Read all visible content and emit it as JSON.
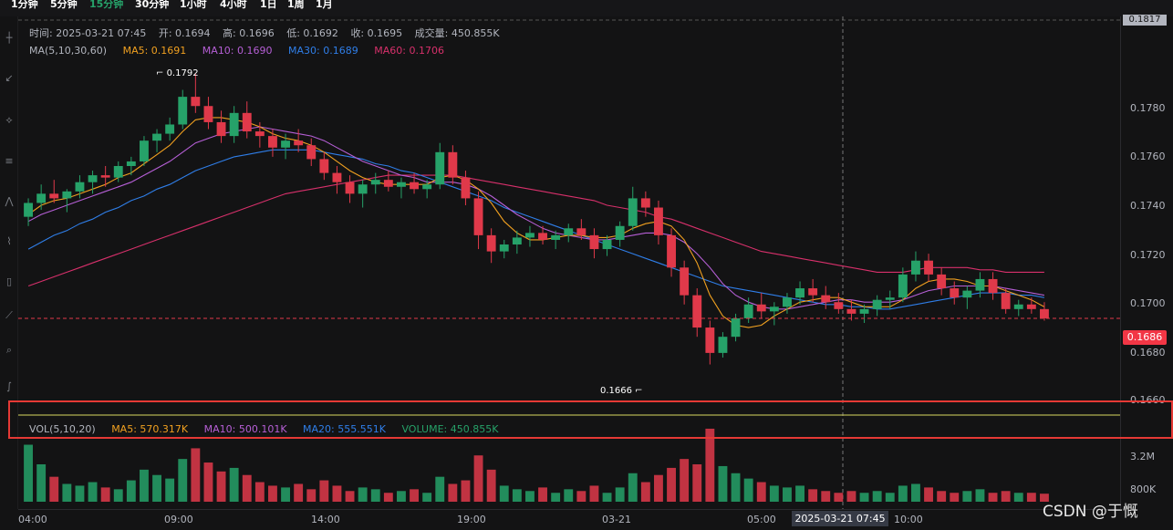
{
  "timeframes": [
    "1分钟",
    "5分钟",
    "15分钟",
    "30分钟",
    "1小时",
    "4小时",
    "1日",
    "1周",
    "1月"
  ],
  "active_timeframe": "15分钟",
  "ohlc_legend": {
    "time": "时间: 2025-03-21 07:45",
    "open": "开: 0.1694",
    "high": "高: 0.1696",
    "low": "低: 0.1692",
    "close": "收: 0.1695",
    "volume": "成交量: 450.855K"
  },
  "ma_legend": {
    "title": "MA(5,10,30,60)",
    "ma5": "MA5: 0.1691",
    "ma10": "MA10: 0.1690",
    "ma30": "MA30: 0.1689",
    "ma60": "MA60: 0.1706"
  },
  "vol_legend": {
    "title": "VOL(5,10,20)",
    "ma5": "MA5: 570.317K",
    "ma10": "MA10: 500.101K",
    "ma20": "MA20: 555.551K",
    "volume": "VOLUME: 450.855K"
  },
  "colors": {
    "up": "#26a269",
    "down": "#e0394a",
    "ma5": "#f0a020",
    "ma10": "#b65fd6",
    "ma30": "#2f7ee8",
    "ma60": "#d7306b",
    "background": "#131314"
  },
  "price_axis": {
    "labels": [
      "0.1780",
      "0.1760",
      "0.1740",
      "0.1720",
      "0.1700",
      "0.1680",
      "0.1660"
    ],
    "last_price": "0.1686",
    "top_price": "0.1817"
  },
  "volume_axis": {
    "labels": [
      "3.2M",
      "800K"
    ]
  },
  "time_axis": {
    "labels": [
      "04:00",
      "09:00",
      "14:00",
      "19:00",
      "03-21",
      "05:00",
      "10:00"
    ],
    "crosshair_time": "2025-03-21 07:45"
  },
  "annotations": {
    "high": "0.1792",
    "low": "0.1666"
  },
  "watermark": "CSDN @于慨",
  "left_toolbar_icons": [
    "crosshair-icon",
    "trend-line-icon",
    "horizontal-line-icon",
    "fib-icon",
    "pattern-icon",
    "brush-icon",
    "text-icon",
    "measure-icon",
    "zoom-icon",
    "eraser-icon"
  ],
  "chart_data": {
    "type": "candlestick",
    "interval": "15分钟",
    "ylim": [
      0.165,
      0.182
    ],
    "candles_ohlc": [
      [
        0.173,
        0.1738,
        0.1726,
        0.1736
      ],
      [
        0.1736,
        0.1744,
        0.1733,
        0.174
      ],
      [
        0.174,
        0.1746,
        0.1736,
        0.1738
      ],
      [
        0.1738,
        0.1742,
        0.1732,
        0.1741
      ],
      [
        0.1741,
        0.1748,
        0.1738,
        0.1745
      ],
      [
        0.1745,
        0.175,
        0.174,
        0.1748
      ],
      [
        0.1748,
        0.1752,
        0.1743,
        0.1747
      ],
      [
        0.1747,
        0.1754,
        0.1745,
        0.1752
      ],
      [
        0.1752,
        0.1756,
        0.1748,
        0.1754
      ],
      [
        0.1754,
        0.1765,
        0.1752,
        0.1763
      ],
      [
        0.1763,
        0.1768,
        0.1758,
        0.1766
      ],
      [
        0.1766,
        0.1773,
        0.1763,
        0.177
      ],
      [
        0.177,
        0.1785,
        0.1768,
        0.1782
      ],
      [
        0.1782,
        0.1792,
        0.1775,
        0.1778
      ],
      [
        0.1778,
        0.1782,
        0.1768,
        0.1771
      ],
      [
        0.1771,
        0.1776,
        0.1762,
        0.1765
      ],
      [
        0.1765,
        0.1778,
        0.1762,
        0.1775
      ],
      [
        0.1775,
        0.178,
        0.1764,
        0.1767
      ],
      [
        0.1767,
        0.1771,
        0.176,
        0.1765
      ],
      [
        0.1765,
        0.1768,
        0.1756,
        0.176
      ],
      [
        0.176,
        0.1766,
        0.1755,
        0.1763
      ],
      [
        0.1763,
        0.1768,
        0.1758,
        0.1761
      ],
      [
        0.1761,
        0.1764,
        0.1752,
        0.1755
      ],
      [
        0.1755,
        0.1758,
        0.1746,
        0.1749
      ],
      [
        0.1749,
        0.1752,
        0.174,
        0.1745
      ],
      [
        0.1745,
        0.1748,
        0.1736,
        0.174
      ],
      [
        0.174,
        0.1746,
        0.1734,
        0.1744
      ],
      [
        0.1744,
        0.1749,
        0.174,
        0.1746
      ],
      [
        0.1746,
        0.175,
        0.1741,
        0.1743
      ],
      [
        0.1743,
        0.1747,
        0.1738,
        0.1745
      ],
      [
        0.1745,
        0.1749,
        0.174,
        0.1742
      ],
      [
        0.1742,
        0.1746,
        0.1738,
        0.1744
      ],
      [
        0.1744,
        0.1762,
        0.1742,
        0.1758
      ],
      [
        0.1758,
        0.1761,
        0.1744,
        0.1747
      ],
      [
        0.1747,
        0.175,
        0.1735,
        0.1738
      ],
      [
        0.1738,
        0.1741,
        0.1716,
        0.1722
      ],
      [
        0.1722,
        0.1725,
        0.171,
        0.1715
      ],
      [
        0.1715,
        0.172,
        0.1712,
        0.1718
      ],
      [
        0.1718,
        0.1724,
        0.1714,
        0.1721
      ],
      [
        0.1721,
        0.1726,
        0.1717,
        0.1723
      ],
      [
        0.1723,
        0.1726,
        0.1718,
        0.172
      ],
      [
        0.172,
        0.1724,
        0.1716,
        0.1722
      ],
      [
        0.1722,
        0.1727,
        0.1719,
        0.1725
      ],
      [
        0.1725,
        0.1729,
        0.172,
        0.1722
      ],
      [
        0.1722,
        0.1725,
        0.1712,
        0.1716
      ],
      [
        0.1716,
        0.1722,
        0.1713,
        0.172
      ],
      [
        0.172,
        0.1728,
        0.1717,
        0.1726
      ],
      [
        0.1726,
        0.1743,
        0.1724,
        0.1738
      ],
      [
        0.1738,
        0.1741,
        0.173,
        0.1734
      ],
      [
        0.1734,
        0.1737,
        0.1718,
        0.1722
      ],
      [
        0.1722,
        0.1725,
        0.1704,
        0.1708
      ],
      [
        0.1708,
        0.1711,
        0.1692,
        0.1696
      ],
      [
        0.1696,
        0.1699,
        0.1678,
        0.1682
      ],
      [
        0.1682,
        0.1685,
        0.1666,
        0.1671
      ],
      [
        0.1671,
        0.168,
        0.1669,
        0.1678
      ],
      [
        0.1678,
        0.1688,
        0.1676,
        0.1686
      ],
      [
        0.1686,
        0.1695,
        0.1684,
        0.1692
      ],
      [
        0.1692,
        0.1697,
        0.1686,
        0.1689
      ],
      [
        0.1689,
        0.1693,
        0.1683,
        0.1691
      ],
      [
        0.1691,
        0.1697,
        0.1688,
        0.1695
      ],
      [
        0.1695,
        0.1702,
        0.1692,
        0.1699
      ],
      [
        0.1699,
        0.1703,
        0.1693,
        0.1696
      ],
      [
        0.1696,
        0.17,
        0.169,
        0.1693
      ],
      [
        0.1693,
        0.1697,
        0.1688,
        0.169
      ],
      [
        0.169,
        0.1694,
        0.1685,
        0.1688
      ],
      [
        0.1688,
        0.1692,
        0.1684,
        0.169
      ],
      [
        0.169,
        0.1696,
        0.1687,
        0.1694
      ],
      [
        0.1694,
        0.1698,
        0.169,
        0.1695
      ],
      [
        0.1695,
        0.1708,
        0.1693,
        0.1705
      ],
      [
        0.1705,
        0.1715,
        0.1702,
        0.1711
      ],
      [
        0.1711,
        0.1714,
        0.1702,
        0.1705
      ],
      [
        0.1705,
        0.1708,
        0.1696,
        0.1699
      ],
      [
        0.1699,
        0.1702,
        0.1692,
        0.1695
      ],
      [
        0.1695,
        0.17,
        0.169,
        0.1698
      ],
      [
        0.1698,
        0.1706,
        0.1695,
        0.1703
      ],
      [
        0.1703,
        0.1706,
        0.1694,
        0.1697
      ],
      [
        0.1697,
        0.1699,
        0.1688,
        0.169
      ],
      [
        0.169,
        0.1694,
        0.1687,
        0.1692
      ],
      [
        0.1692,
        0.1695,
        0.1688,
        0.169
      ],
      [
        0.169,
        0.1693,
        0.1685,
        0.1686
      ]
    ],
    "ma5": [
      0.1731,
      0.1735,
      0.1737,
      0.1738,
      0.174,
      0.1742,
      0.1744,
      0.1747,
      0.1749,
      0.1753,
      0.1757,
      0.1761,
      0.1767,
      0.1772,
      0.1773,
      0.1773,
      0.1772,
      0.1771,
      0.1769,
      0.1766,
      0.1764,
      0.1763,
      0.1761,
      0.1758,
      0.1754,
      0.175,
      0.1747,
      0.1745,
      0.1744,
      0.1744,
      0.1744,
      0.1744,
      0.1747,
      0.1748,
      0.1746,
      0.1742,
      0.1736,
      0.1728,
      0.1723,
      0.172,
      0.172,
      0.1721,
      0.1722,
      0.1722,
      0.1721,
      0.1721,
      0.1722,
      0.1725,
      0.1727,
      0.1728,
      0.1726,
      0.172,
      0.171,
      0.1696,
      0.1687,
      0.1683,
      0.1682,
      0.1683,
      0.1687,
      0.169,
      0.1693,
      0.1694,
      0.1695,
      0.1695,
      0.1693,
      0.1691,
      0.1691,
      0.1691,
      0.1694,
      0.1699,
      0.1702,
      0.1703,
      0.1703,
      0.1702,
      0.17,
      0.17,
      0.1698,
      0.1696,
      0.1694,
      0.1691
    ],
    "ma10": [
      0.1728,
      0.1731,
      0.1733,
      0.1735,
      0.1737,
      0.1739,
      0.1741,
      0.1743,
      0.1745,
      0.1748,
      0.1751,
      0.1754,
      0.1758,
      0.1762,
      0.1764,
      0.1766,
      0.1767,
      0.1768,
      0.1769,
      0.1768,
      0.1767,
      0.1766,
      0.1765,
      0.1763,
      0.176,
      0.1757,
      0.1754,
      0.1752,
      0.175,
      0.1748,
      0.1747,
      0.1745,
      0.1745,
      0.1745,
      0.1744,
      0.1742,
      0.1739,
      0.1735,
      0.1731,
      0.1728,
      0.1725,
      0.1723,
      0.1722,
      0.1721,
      0.172,
      0.172,
      0.1721,
      0.1722,
      0.1723,
      0.1723,
      0.1722,
      0.1719,
      0.1714,
      0.1708,
      0.1701,
      0.1696,
      0.1693,
      0.1691,
      0.169,
      0.169,
      0.1691,
      0.1692,
      0.1693,
      0.1694,
      0.1694,
      0.1693,
      0.1693,
      0.1693,
      0.1694,
      0.1696,
      0.1698,
      0.1699,
      0.17,
      0.17,
      0.17,
      0.17,
      0.1699,
      0.1698,
      0.1697,
      0.1696
    ],
    "ma30": [
      0.1716,
      0.1719,
      0.1722,
      0.1724,
      0.1727,
      0.1729,
      0.1732,
      0.1734,
      0.1737,
      0.1739,
      0.1742,
      0.1744,
      0.1747,
      0.175,
      0.1752,
      0.1754,
      0.1756,
      0.1757,
      0.1758,
      0.1759,
      0.1759,
      0.1759,
      0.1759,
      0.1758,
      0.1757,
      0.1756,
      0.1755,
      0.1753,
      0.1752,
      0.175,
      0.1749,
      0.1747,
      0.1745,
      0.1743,
      0.1741,
      0.1739,
      0.1737,
      0.1734,
      0.1732,
      0.173,
      0.1728,
      0.1726,
      0.1724,
      0.1722,
      0.172,
      0.1718,
      0.1716,
      0.1714,
      0.1712,
      0.171,
      0.1708,
      0.1706,
      0.1704,
      0.1702,
      0.17,
      0.1699,
      0.1698,
      0.1697,
      0.1696,
      0.1695,
      0.1694,
      0.1693,
      0.1692,
      0.1692,
      0.1691,
      0.1691,
      0.169,
      0.169,
      0.1691,
      0.1692,
      0.1693,
      0.1694,
      0.1695,
      0.1696,
      0.1697,
      0.1697,
      0.1697,
      0.1696,
      0.1696,
      0.1695
    ],
    "ma60": [
      0.17,
      0.1702,
      0.1704,
      0.1706,
      0.1708,
      0.171,
      0.1712,
      0.1714,
      0.1716,
      0.1718,
      0.172,
      0.1722,
      0.1724,
      0.1726,
      0.1728,
      0.173,
      0.1732,
      0.1734,
      0.1736,
      0.1738,
      0.174,
      0.1741,
      0.1742,
      0.1743,
      0.1744,
      0.1745,
      0.1746,
      0.1747,
      0.1748,
      0.1748,
      0.1748,
      0.1748,
      0.1748,
      0.1748,
      0.1747,
      0.1746,
      0.1745,
      0.1744,
      0.1743,
      0.1742,
      0.1741,
      0.174,
      0.1739,
      0.1738,
      0.1737,
      0.1735,
      0.1734,
      0.1733,
      0.1732,
      0.173,
      0.1729,
      0.1727,
      0.1725,
      0.1723,
      0.1721,
      0.1719,
      0.1717,
      0.1715,
      0.1714,
      0.1713,
      0.1712,
      0.1711,
      0.171,
      0.1709,
      0.1708,
      0.1707,
      0.1706,
      0.1706,
      0.1706,
      0.1707,
      0.1708,
      0.1708,
      0.1708,
      0.1708,
      0.1707,
      0.1707,
      0.1706,
      0.1706,
      0.1706,
      0.1706
    ],
    "volume_millions": [
      3.2,
      2.1,
      1.4,
      1.0,
      0.9,
      1.1,
      0.8,
      0.7,
      1.2,
      1.8,
      1.5,
      1.3,
      2.4,
      3.0,
      2.2,
      1.7,
      1.9,
      1.5,
      1.1,
      0.9,
      0.8,
      1.0,
      0.7,
      1.2,
      0.9,
      0.6,
      0.8,
      0.7,
      0.5,
      0.6,
      0.7,
      0.5,
      1.4,
      1.0,
      1.2,
      2.6,
      1.8,
      0.9,
      0.7,
      0.6,
      0.8,
      0.5,
      0.7,
      0.6,
      0.9,
      0.5,
      0.8,
      1.6,
      1.1,
      1.5,
      1.9,
      2.4,
      2.1,
      4.1,
      2.0,
      1.6,
      1.3,
      1.1,
      0.9,
      0.8,
      0.9,
      0.7,
      0.6,
      0.5,
      0.6,
      0.5,
      0.6,
      0.5,
      0.9,
      1.0,
      0.8,
      0.6,
      0.5,
      0.6,
      0.7,
      0.5,
      0.6,
      0.5,
      0.5,
      0.45
    ],
    "volume_axis_labels": [
      "3.2M",
      "800K"
    ]
  }
}
